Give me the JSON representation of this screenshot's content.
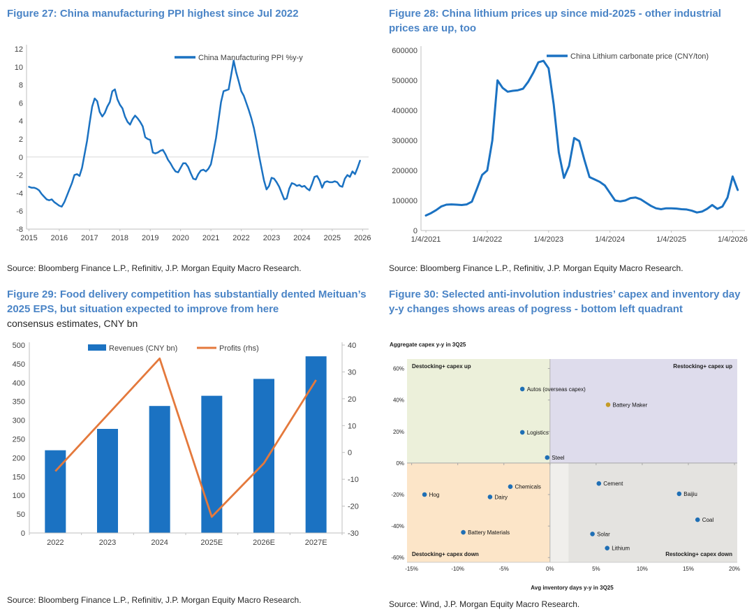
{
  "page": {
    "background": "#ffffff",
    "title_color": "#4A84C6"
  },
  "chart_data": [
    {
      "id": "figure-27",
      "type": "line",
      "title": "Figure 27: China manufacturing PPI highest since Jul 2022",
      "legend": "China Manufacturing PPI %y-y",
      "source": "Source: Bloomberg Finance L.P., Refinitiv, J.P. Morgan Equity Macro Research.",
      "color": "#1B72C2",
      "zero_line": true,
      "ylim": [
        -8,
        12
      ],
      "yticks": [
        12,
        10,
        8,
        6,
        4,
        2,
        0,
        -2,
        -4,
        -6,
        -8
      ],
      "xlim": [
        2014.92,
        2026.2
      ],
      "xticks": [
        {
          "v": 2015,
          "label": "2015"
        },
        {
          "v": 2016,
          "label": "2016"
        },
        {
          "v": 2017,
          "label": "2017"
        },
        {
          "v": 2018,
          "label": "2018"
        },
        {
          "v": 2019,
          "label": "2019"
        },
        {
          "v": 2020,
          "label": "2020"
        },
        {
          "v": 2021,
          "label": "2021"
        },
        {
          "v": 2022,
          "label": "2022"
        },
        {
          "v": 2023,
          "label": "2023"
        },
        {
          "v": 2024,
          "label": "2024"
        },
        {
          "v": 2025,
          "label": "2025"
        },
        {
          "v": 2026,
          "label": "2026"
        }
      ],
      "x_start": 2015,
      "x_step": "monthly",
      "values": [
        -3.3,
        -3.4,
        -3.4,
        -3.5,
        -3.7,
        -4.1,
        -4.4,
        -4.7,
        -4.8,
        -4.7,
        -5.0,
        -5.2,
        -5.4,
        -5.5,
        -5.0,
        -4.3,
        -3.6,
        -2.9,
        -2.0,
        -1.9,
        -2.1,
        -1.2,
        0.3,
        1.8,
        3.8,
        5.6,
        6.5,
        6.2,
        5.0,
        4.5,
        4.9,
        5.6,
        6.1,
        7.3,
        7.5,
        6.4,
        5.8,
        5.4,
        4.5,
        3.9,
        3.6,
        4.2,
        4.6,
        4.3,
        3.9,
        3.4,
        2.2,
        2.0,
        1.9,
        0.5,
        0.4,
        0.5,
        0.7,
        0.8,
        0.3,
        -0.3,
        -0.7,
        -1.2,
        -1.6,
        -1.7,
        -1.2,
        -0.7,
        -0.7,
        -1.1,
        -1.8,
        -2.4,
        -2.5,
        -1.9,
        -1.5,
        -1.4,
        -1.6,
        -1.3,
        -0.8,
        0.6,
        2.1,
        4.1,
        6.1,
        7.3,
        7.4,
        7.5,
        9.1,
        10.7,
        9.4,
        8.4,
        7.3,
        6.8,
        6.0,
        5.2,
        4.3,
        3.2,
        1.8,
        0.2,
        -1.2,
        -2.6,
        -3.6,
        -3.2,
        -2.3,
        -2.4,
        -2.8,
        -3.3,
        -4.0,
        -4.7,
        -4.6,
        -3.5,
        -2.9,
        -3.0,
        -3.2,
        -3.1,
        -3.3,
        -3.2,
        -3.5,
        -3.7,
        -3.0,
        -2.2,
        -2.1,
        -2.6,
        -3.4,
        -2.8,
        -2.7,
        -2.8,
        -2.8,
        -2.7,
        -2.8,
        -3.2,
        -3.3,
        -2.4,
        -2.0,
        -2.2,
        -1.6,
        -1.9,
        -1.2,
        -0.4
      ]
    },
    {
      "id": "figure-28",
      "type": "line",
      "title": "Figure 28: China lithium prices up since mid-2025 - other industrial prices are up, too",
      "legend": "China Lithium carbonate price (CNY/ton)",
      "source": "Source: Bloomberg Finance L.P., Refinitiv, J.P. Morgan Equity Macro Research.",
      "color": "#1B72C2",
      "zero_line": false,
      "ylim": [
        0,
        600000
      ],
      "yticks": [
        600000,
        500000,
        400000,
        300000,
        200000,
        100000,
        0
      ],
      "xlim": [
        2020.92,
        2026.2
      ],
      "xticks": [
        {
          "v": 2021,
          "label": "1/4/2021"
        },
        {
          "v": 2022,
          "label": "1/4/2022"
        },
        {
          "v": 2023,
          "label": "1/4/2023"
        },
        {
          "v": 2024,
          "label": "1/4/2024"
        },
        {
          "v": 2025,
          "label": "1/4/2025"
        },
        {
          "v": 2026,
          "label": "1/4/2026"
        }
      ],
      "x_start": 2021,
      "x_step": "monthly",
      "values": [
        50000,
        58000,
        68000,
        80000,
        86000,
        87000,
        86000,
        85000,
        87000,
        96000,
        140000,
        185000,
        200000,
        300000,
        500000,
        475000,
        462000,
        465000,
        467000,
        472000,
        495000,
        525000,
        560000,
        565000,
        540000,
        420000,
        260000,
        175000,
        215000,
        308000,
        298000,
        235000,
        178000,
        170000,
        162000,
        150000,
        125000,
        100000,
        97000,
        100000,
        108000,
        110000,
        104000,
        93000,
        82000,
        74000,
        71000,
        74000,
        74000,
        73000,
        71000,
        70000,
        66000,
        60000,
        63000,
        72000,
        85000,
        72000,
        80000,
        110000,
        180000,
        135000
      ]
    },
    {
      "id": "figure-29",
      "type": "bar+line",
      "title": "Figure 29: Food delivery competition has substantially dented Meituan’s 2025 EPS, but situation expected to improve from here",
      "subtitle": "consensus estimates, CNY bn",
      "source": "Source: Bloomberg Finance L.P., Refinitiv, J.P. Morgan Equity Macro Research.",
      "categories": [
        "2022",
        "2023",
        "2024",
        "2025E",
        "2026E",
        "2027E"
      ],
      "series": [
        {
          "name": "Revenues (CNY bn)",
          "type": "bar",
          "axis": "left",
          "color": "#1B72C2",
          "values": [
            220,
            277,
            338,
            365,
            410,
            470
          ]
        },
        {
          "name": "Profits (rhs)",
          "type": "line",
          "axis": "right",
          "color": "#E4793C",
          "values": [
            -7,
            14,
            35,
            -24,
            -4,
            27
          ]
        }
      ],
      "ylim_left": [
        0,
        500
      ],
      "yticks_left": [
        500,
        450,
        400,
        350,
        300,
        250,
        200,
        150,
        100,
        50,
        0
      ],
      "ylim_right": [
        -30,
        40
      ],
      "yticks_right": [
        40,
        30,
        20,
        10,
        0,
        -10,
        -20,
        -30
      ]
    },
    {
      "id": "figure-30",
      "type": "scatter",
      "title": "Figure 30: Selected anti-involution industries’ capex and inventory day y-y changes shows areas of pogress - bottom left quadrant",
      "source": "Source: Wind, J.P. Morgan Equity Macro Research.",
      "xlabel": "Avg inventory days y-y in 3Q25",
      "ylabel": "Aggregate capex y-y in 3Q25",
      "xlim": [
        -15.5,
        20.3
      ],
      "ylim": [
        -63,
        66
      ],
      "xticks": [
        -15,
        -10,
        -5,
        0,
        5,
        10,
        15,
        20
      ],
      "yticks": [
        60,
        40,
        20,
        0,
        -20,
        -40,
        -60
      ],
      "default_point_color": "#1F6FB5",
      "quadrants": [
        {
          "x": [
            -15.5,
            0
          ],
          "y": [
            0,
            66
          ],
          "color": "#ECF0DA",
          "label": "Destocking+ capex up",
          "anchor": "tl"
        },
        {
          "x": [
            0,
            20.3
          ],
          "y": [
            0,
            66
          ],
          "color": "#DEDCEC",
          "label": "Restocking+ capex up",
          "anchor": "tr"
        },
        {
          "x": [
            -15.5,
            0
          ],
          "y": [
            -63,
            0
          ],
          "color": "#FCE5C8",
          "label": "Destocking+ capex down",
          "anchor": "bl"
        },
        {
          "x": [
            0,
            2
          ],
          "y": [
            -63,
            0
          ],
          "color": "#F0EFEC"
        },
        {
          "x": [
            2,
            20.3
          ],
          "y": [
            -63,
            0
          ],
          "color": "#E4E3E0",
          "label": "Restocking+ capex down",
          "anchor": "br"
        }
      ],
      "points": [
        {
          "name": "Autos (overseas capex)",
          "x": -3.0,
          "y": 47.0
        },
        {
          "name": "Battery Maker",
          "x": 6.3,
          "y": 37.0,
          "color": "#C49B26"
        },
        {
          "name": "Logistics",
          "x": -3.0,
          "y": 19.5
        },
        {
          "name": "Steel",
          "x": -0.3,
          "y": 3.5
        },
        {
          "name": "Cement",
          "x": 5.3,
          "y": -13.0
        },
        {
          "name": "Hog",
          "x": -13.6,
          "y": -20.0
        },
        {
          "name": "Dairy",
          "x": -6.5,
          "y": -21.5
        },
        {
          "name": "Chemicals",
          "x": -4.3,
          "y": -15.0
        },
        {
          "name": "Battery Materials",
          "x": -9.4,
          "y": -44.0
        },
        {
          "name": "Baijiu",
          "x": 14.0,
          "y": -19.5
        },
        {
          "name": "Coal",
          "x": 16.0,
          "y": -36.0
        },
        {
          "name": "Solar",
          "x": 4.6,
          "y": -45.0
        },
        {
          "name": "Lithium",
          "x": 6.2,
          "y": -54.0
        }
      ]
    }
  ]
}
